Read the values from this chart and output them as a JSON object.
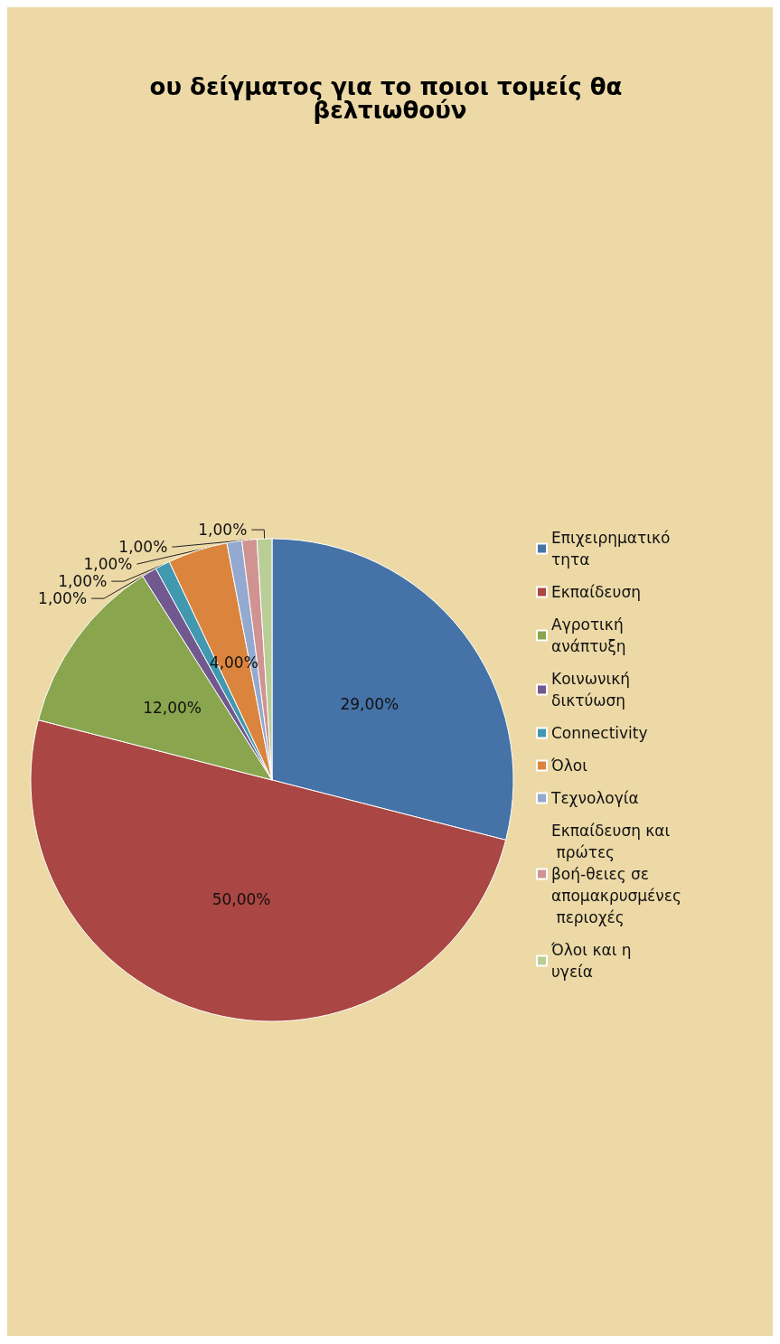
{
  "chart_data": {
    "type": "pie",
    "title": "ου δείγματος για το ποιοι τομείς θα βελτιωθούν",
    "categories": [
      "Επιχειρηματικότητα",
      "Εκπαίδευση",
      "Αγροτική ανάπτυξη",
      "Κοινωνική δικτύωση",
      "Connectivity",
      "Όλοι",
      "Τεχνολογία",
      "Εκπαίδευση και πρώτες βοή-θειες σε απομακρυσμένες περιοχές",
      "Όλοι και η υγεία"
    ],
    "values": [
      29,
      50,
      12,
      1,
      1,
      4,
      1,
      1,
      1
    ],
    "value_labels": [
      "29,00%",
      "50,00%",
      "12,00%",
      "1,00%",
      "1,00%",
      "4,00%",
      "1,00%",
      "1,00%",
      "1,00%"
    ],
    "colors": [
      "#4572a7",
      "#aa4643",
      "#89a54e",
      "#71588f",
      "#4198af",
      "#db843d",
      "#93a9cf",
      "#d19392",
      "#b9cd96"
    ],
    "legend": "right"
  }
}
